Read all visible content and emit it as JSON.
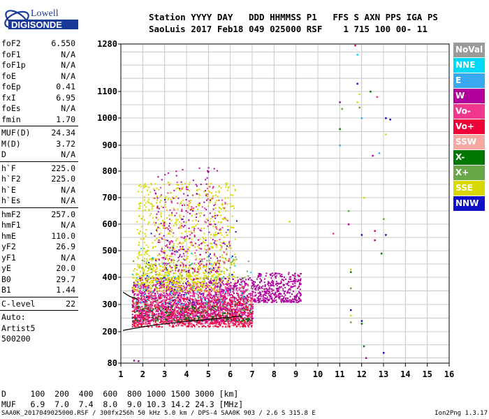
{
  "logo": {
    "line1": "Lowell",
    "line2": "DIGISONDE"
  },
  "header": {
    "line1": "Station YYYY DAY   DDD HHMMSS P1   FFS S AXN PPS IGA PS",
    "line2": "SaoLuis 2017 Feb18 049 025000 RSF    1 715 100 00- 11"
  },
  "params": [
    {
      "name": "foF2",
      "value": "6.550"
    },
    {
      "name": "foF1",
      "value": "N/A"
    },
    {
      "name": "foF1p",
      "value": "N/A"
    },
    {
      "name": "foE",
      "value": "N/A"
    },
    {
      "name": "foEp",
      "value": "0.41"
    },
    {
      "name": "fxI",
      "value": "6.95"
    },
    {
      "name": "foEs",
      "value": "N/A"
    },
    {
      "name": "fmin",
      "value": "1.70"
    },
    {
      "sep": true
    },
    {
      "name": "MUF(D)",
      "value": "24.34"
    },
    {
      "name": "M(D)",
      "value": "3.72"
    },
    {
      "name": "D",
      "value": "N/A"
    },
    {
      "sep": true
    },
    {
      "name": "h`F",
      "value": "225.0"
    },
    {
      "name": "h`F2",
      "value": "225.0"
    },
    {
      "name": "h`E",
      "value": "N/A"
    },
    {
      "name": "h`Es",
      "value": "N/A"
    },
    {
      "sep": true
    },
    {
      "name": "hmF2",
      "value": "257.0"
    },
    {
      "name": "hmF1",
      "value": "N/A"
    },
    {
      "name": "hmE",
      "value": "110.0"
    },
    {
      "name": "yF2",
      "value": "26.9"
    },
    {
      "name": "yF1",
      "value": "N/A"
    },
    {
      "name": "yE",
      "value": "20.0"
    },
    {
      "name": "B0",
      "value": "29.7"
    },
    {
      "name": "B1",
      "value": "1.44"
    },
    {
      "sep": true
    },
    {
      "name": "C-level",
      "value": "22"
    },
    {
      "sep": true
    },
    {
      "text": "Auto:"
    },
    {
      "text": "Artist5"
    },
    {
      "text": "500200"
    }
  ],
  "legend": [
    {
      "label": "NoVal",
      "color": "#9a9a9a"
    },
    {
      "label": "NNE",
      "color": "#00d8f8"
    },
    {
      "label": "E",
      "color": "#3aa8f0"
    },
    {
      "label": "W",
      "color": "#b0009c"
    },
    {
      "label": "Vo-",
      "color": "#f03890"
    },
    {
      "label": "Vo+",
      "color": "#ee0038"
    },
    {
      "label": "SSW",
      "color": "#f4a8a0"
    },
    {
      "label": "X-",
      "color": "#007800"
    },
    {
      "label": "X+",
      "color": "#68a848"
    },
    {
      "label": "SSE",
      "color": "#d8d800"
    },
    {
      "label": "NNW",
      "color": "#1010c8"
    }
  ],
  "footer": {
    "line1": "D     100  200  400  600  800 1000 1500 3000 [km]",
    "line2": "MUF   6.9  7.0  7.4  8.0  9.0 10.3 14.2 24.3 [MHz]",
    "bottom_left": "SAA0K_2017049025000.RSF / 300fx256h 50 kHz 5.0 km / DPS-4 SAA0K 903 / 2.6 S 315.8 E",
    "bottom_right": "Ion2Png 1.3.17"
  },
  "chart_data": {
    "type": "scatter",
    "xlim": [
      1,
      16
    ],
    "ylim": [
      80,
      1280
    ],
    "x_ticks": [
      "1",
      "2",
      "3",
      "4",
      "5",
      "6",
      "7",
      "8",
      "9",
      "10",
      "11",
      "12",
      "13",
      "14",
      "15",
      "16"
    ],
    "y_ticks": [
      "80",
      "200",
      "300",
      "400",
      "500",
      "600",
      "700",
      "800",
      "900",
      "1000",
      "1100",
      "1280"
    ],
    "grid": true,
    "trace_lines": [
      {
        "name": "virtual-height-trace",
        "color": "#000000",
        "points": [
          [
            1.1,
            205
          ],
          [
            2,
            218
          ],
          [
            3,
            229
          ],
          [
            4,
            238
          ],
          [
            5,
            246
          ],
          [
            6,
            253
          ],
          [
            6.5,
            258
          ]
        ]
      },
      {
        "name": "trace-o-upper",
        "color": "#000000",
        "points": [
          [
            1.1,
            345
          ],
          [
            1.4,
            330
          ],
          [
            1.8,
            318
          ]
        ]
      }
    ],
    "clusters": [
      {
        "color": "#b0009c",
        "x": [
          1.5,
          7.0
        ],
        "y": [
          240,
          400
        ],
        "count": 1400
      },
      {
        "color": "#f03890",
        "x": [
          1.5,
          7.0
        ],
        "y": [
          230,
          380
        ],
        "count": 900
      },
      {
        "color": "#ee0038",
        "x": [
          1.5,
          7.0
        ],
        "y": [
          220,
          330
        ],
        "count": 600
      },
      {
        "color": "#d8d800",
        "x": [
          1.7,
          6.2
        ],
        "y": [
          380,
          760
        ],
        "count": 700
      },
      {
        "color": "#d8d800",
        "x": [
          1.5,
          5.5
        ],
        "y": [
          350,
          450
        ],
        "count": 300
      },
      {
        "color": "#b0009c",
        "x": [
          7.0,
          9.2
        ],
        "y": [
          310,
          420
        ],
        "count": 400
      },
      {
        "color": "#007800",
        "x": [
          1.5,
          7.0
        ],
        "y": [
          240,
          300
        ],
        "count": 150
      },
      {
        "color": "#68a848",
        "x": [
          1.5,
          7.0
        ],
        "y": [
          280,
          480
        ],
        "count": 150
      },
      {
        "color": "#f4a8a0",
        "x": [
          1.5,
          7.0
        ],
        "y": [
          220,
          360
        ],
        "count": 150
      },
      {
        "color": "#00d8f8",
        "x": [
          1.5,
          7.0
        ],
        "y": [
          300,
          520
        ],
        "count": 60
      },
      {
        "color": "#1010c8",
        "x": [
          2.0,
          6.5
        ],
        "y": [
          300,
          700
        ],
        "count": 40
      },
      {
        "color": "#b0009c",
        "x": [
          2.5,
          5.5
        ],
        "y": [
          420,
          820
        ],
        "count": 200
      },
      {
        "color": "#f03890",
        "x": [
          2.5,
          6.0
        ],
        "y": [
          420,
          760
        ],
        "count": 150
      }
    ],
    "points": [
      {
        "x": 11.0,
        "y": 1060,
        "color": "#b0009c"
      },
      {
        "x": 11.0,
        "y": 960,
        "color": "#007800"
      },
      {
        "x": 11.0,
        "y": 900,
        "color": "#3aa8f0"
      },
      {
        "x": 11.1,
        "y": 1035,
        "color": "#68a848"
      },
      {
        "x": 11.4,
        "y": 650,
        "color": "#68a848"
      },
      {
        "x": 11.4,
        "y": 600,
        "color": "#b0009c"
      },
      {
        "x": 11.5,
        "y": 430,
        "color": "#d8d800"
      },
      {
        "x": 11.5,
        "y": 420,
        "color": "#007800"
      },
      {
        "x": 11.5,
        "y": 360,
        "color": "#68a848"
      },
      {
        "x": 11.5,
        "y": 280,
        "color": "#1010c8"
      },
      {
        "x": 11.5,
        "y": 260,
        "color": "#d8d800"
      },
      {
        "x": 11.5,
        "y": 235,
        "color": "#68a848"
      },
      {
        "x": 11.7,
        "y": 1275,
        "color": "#ee0038"
      },
      {
        "x": 11.8,
        "y": 1240,
        "color": "#00d8f8"
      },
      {
        "x": 11.8,
        "y": 1130,
        "color": "#1010c8"
      },
      {
        "x": 11.8,
        "y": 1060,
        "color": "#d8d800"
      },
      {
        "x": 11.9,
        "y": 1090,
        "color": "#d8d800"
      },
      {
        "x": 11.9,
        "y": 1040,
        "color": "#68a848"
      },
      {
        "x": 12.0,
        "y": 1000,
        "color": "#3aa8f0"
      },
      {
        "x": 12.0,
        "y": 560,
        "color": "#1010c8"
      },
      {
        "x": 12.0,
        "y": 240,
        "color": "#1010c8"
      },
      {
        "x": 12.0,
        "y": 230,
        "color": "#007800"
      },
      {
        "x": 12.1,
        "y": 700,
        "color": "#d8d800"
      },
      {
        "x": 12.1,
        "y": 145,
        "color": "#007800"
      },
      {
        "x": 12.4,
        "y": 1100,
        "color": "#007800"
      },
      {
        "x": 12.5,
        "y": 860,
        "color": "#b0009c"
      },
      {
        "x": 12.6,
        "y": 575,
        "color": "#ee0038"
      },
      {
        "x": 12.6,
        "y": 540,
        "color": "#b0009c"
      },
      {
        "x": 12.7,
        "y": 1080,
        "color": "#f03890"
      },
      {
        "x": 12.8,
        "y": 870,
        "color": "#3aa8f0"
      },
      {
        "x": 12.9,
        "y": 490,
        "color": "#007800"
      },
      {
        "x": 13.0,
        "y": 620,
        "color": "#68a848"
      },
      {
        "x": 13.1,
        "y": 1000,
        "color": "#1010c8"
      },
      {
        "x": 13.1,
        "y": 560,
        "color": "#1010c8"
      },
      {
        "x": 13.1,
        "y": 940,
        "color": "#d8d800"
      },
      {
        "x": 13.3,
        "y": 995,
        "color": "#1010c8"
      },
      {
        "x": 13.0,
        "y": 120,
        "color": "#1010c8"
      },
      {
        "x": 12.2,
        "y": 100,
        "color": "#b0009c"
      },
      {
        "x": 1.8,
        "y": 88,
        "color": "#b0009c"
      },
      {
        "x": 1.6,
        "y": 90,
        "color": "#b0009c"
      },
      {
        "x": 10.7,
        "y": 565,
        "color": "#f03890"
      },
      {
        "x": 8.7,
        "y": 610,
        "color": "#d8d800"
      }
    ]
  }
}
